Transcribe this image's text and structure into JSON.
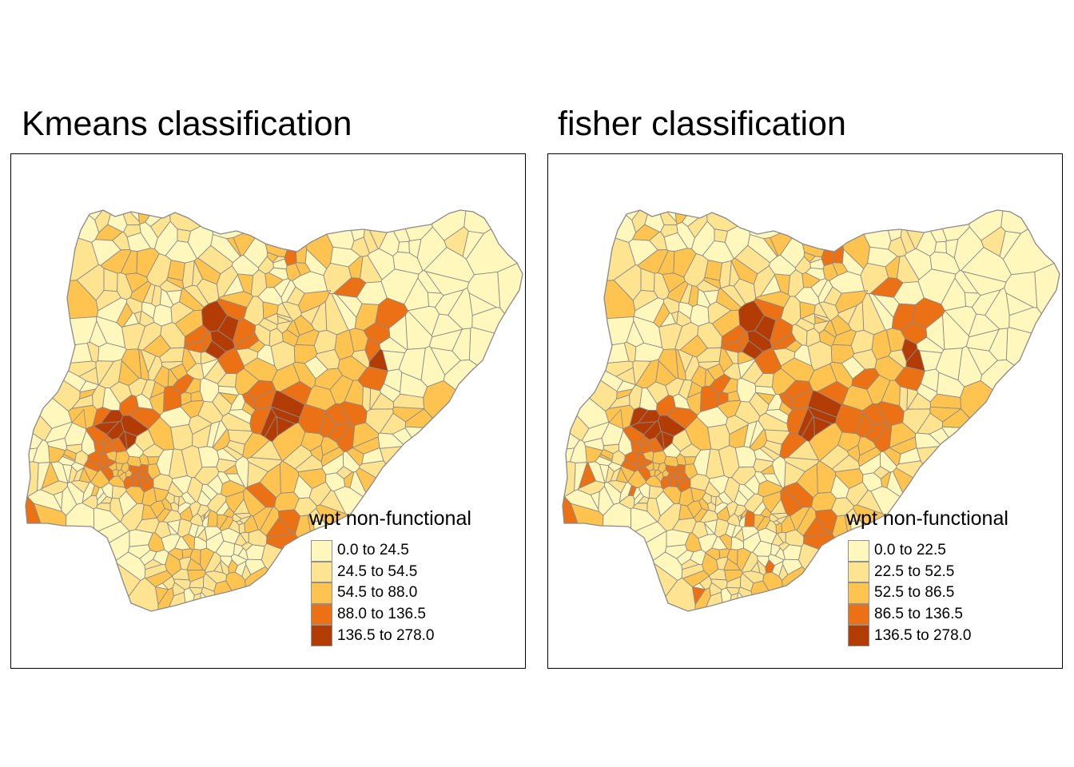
{
  "palette": [
    "#fff7bc",
    "#fee391",
    "#fec44f",
    "#ec7014",
    "#b33c04"
  ],
  "border_color": "#8a8a8a",
  "maps": [
    {
      "title": "Kmeans classification",
      "legend": {
        "title": "wpt non-functional",
        "classes": [
          "0.0 to 24.5",
          "24.5 to 54.5",
          "54.5 to 88.0",
          "88.0 to 136.5",
          "136.5 to 278.0"
        ]
      }
    },
    {
      "title": "fisher classification",
      "legend": {
        "title": "wpt non-functional",
        "classes": [
          "0.0 to 22.5",
          "22.5 to 52.5",
          "52.5 to 86.5",
          "86.5 to 136.5",
          "136.5 to 278.0"
        ]
      }
    }
  ]
}
